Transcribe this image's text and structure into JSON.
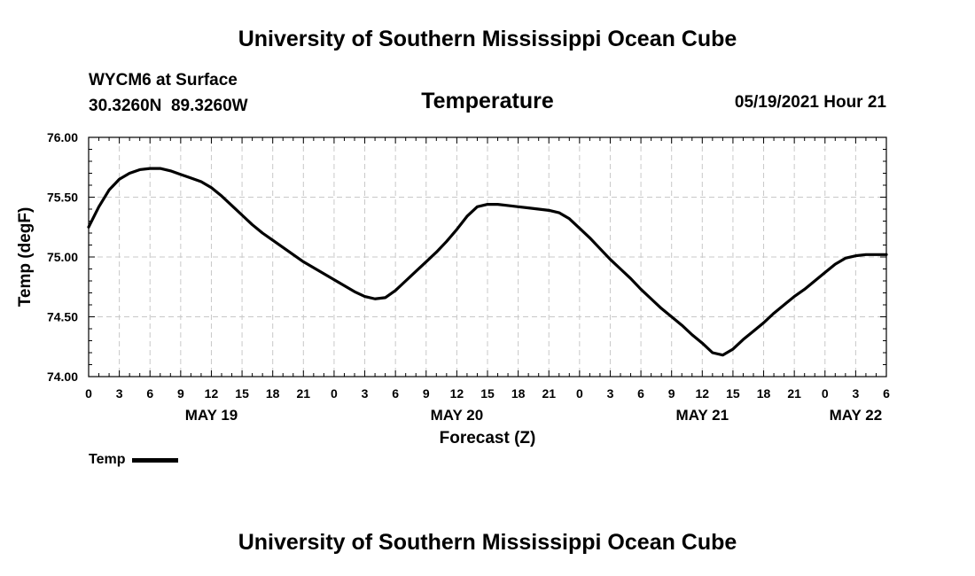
{
  "header": {
    "institution": "University of Southern Mississippi Ocean Cube",
    "station_name": "WYCM6 at Surface",
    "station_coords": "30.3260N  89.3260W",
    "chart_title": "Temperature",
    "datetime": "05/19/2021 Hour 21"
  },
  "footer": {
    "institution": "University of Southern Mississippi Ocean Cube"
  },
  "legend": {
    "label": "Temp"
  },
  "chart_data": {
    "type": "line",
    "title": "Temperature",
    "xlabel": "Forecast (Z)",
    "ylabel": "Temp (degF)",
    "xlim": [
      0,
      78
    ],
    "ylim": [
      74.0,
      76.0
    ],
    "grid": true,
    "yticks": [
      "74.00",
      "74.50",
      "75.00",
      "75.50",
      "76.00"
    ],
    "xticks": [
      "0",
      "3",
      "6",
      "9",
      "12",
      "15",
      "18",
      "21",
      "0",
      "3",
      "6",
      "9",
      "12",
      "15",
      "18",
      "21",
      "0",
      "3",
      "6",
      "9",
      "12",
      "15",
      "18",
      "21",
      "0",
      "3",
      "6"
    ],
    "date_labels": [
      {
        "label": "MAY 19",
        "hour_offset": 12
      },
      {
        "label": "MAY 20",
        "hour_offset": 36
      },
      {
        "label": "MAY 21",
        "hour_offset": 60
      },
      {
        "label": "MAY 22",
        "hour_offset": 75
      }
    ],
    "series": [
      {
        "name": "Temp",
        "x": [
          0,
          1,
          2,
          3,
          4,
          5,
          6,
          7,
          8,
          9,
          10,
          11,
          12,
          13,
          14,
          15,
          16,
          17,
          18,
          19,
          20,
          21,
          22,
          23,
          24,
          25,
          26,
          27,
          28,
          29,
          30,
          31,
          32,
          33,
          34,
          35,
          36,
          37,
          38,
          39,
          40,
          41,
          42,
          43,
          44,
          45,
          46,
          47,
          48,
          49,
          50,
          51,
          52,
          53,
          54,
          55,
          56,
          57,
          58,
          59,
          60,
          61,
          62,
          63,
          64,
          65,
          66,
          67,
          68,
          69,
          70,
          71,
          72,
          73,
          74,
          75,
          76,
          77,
          78
        ],
        "values": [
          75.25,
          75.42,
          75.56,
          75.65,
          75.7,
          75.73,
          75.74,
          75.74,
          75.72,
          75.69,
          75.66,
          75.63,
          75.58,
          75.51,
          75.43,
          75.35,
          75.27,
          75.2,
          75.14,
          75.08,
          75.02,
          74.96,
          74.91,
          74.86,
          74.81,
          74.76,
          74.71,
          74.67,
          74.65,
          74.66,
          74.72,
          74.8,
          74.88,
          74.96,
          75.04,
          75.13,
          75.23,
          75.34,
          75.42,
          75.44,
          75.44,
          75.43,
          75.42,
          75.41,
          75.4,
          75.39,
          75.37,
          75.32,
          75.24,
          75.16,
          75.07,
          74.98,
          74.9,
          74.82,
          74.73,
          74.65,
          74.57,
          74.5,
          74.43,
          74.35,
          74.28,
          74.2,
          74.18,
          74.23,
          74.31,
          74.38,
          74.45,
          74.53,
          74.6,
          74.67,
          74.73,
          74.8,
          74.87,
          74.94,
          74.99,
          75.01,
          75.02,
          75.02,
          75.02
        ]
      }
    ]
  }
}
